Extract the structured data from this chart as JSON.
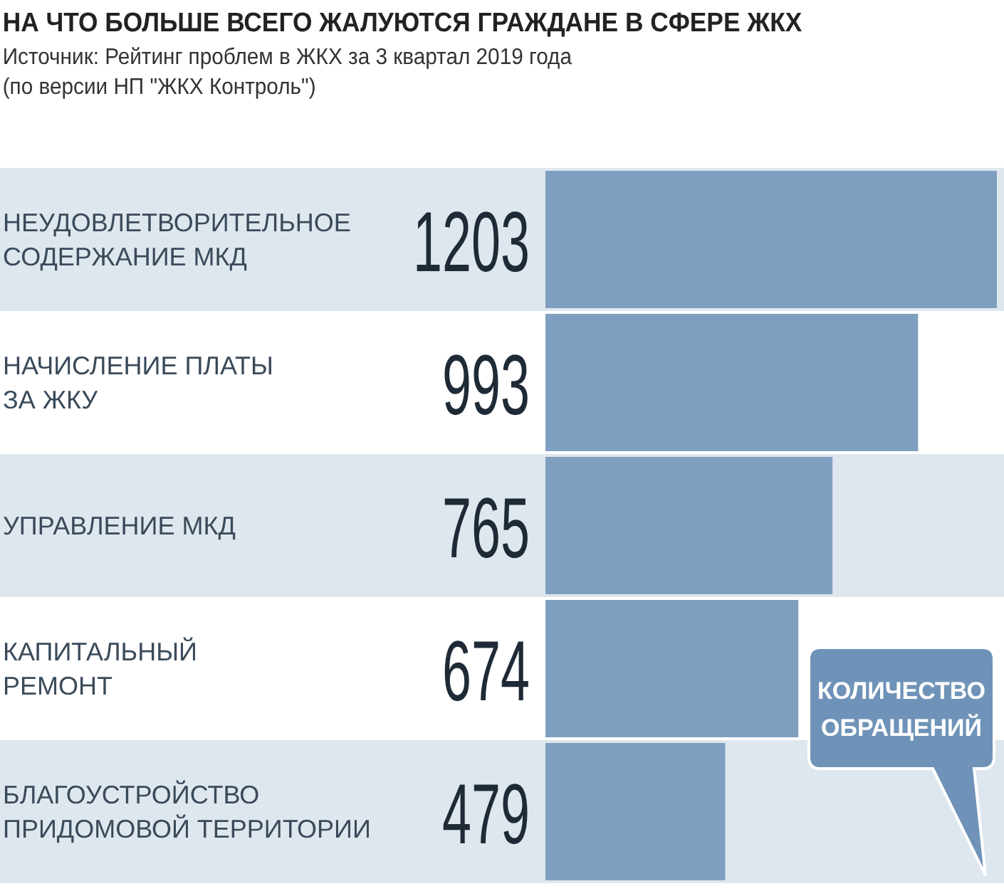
{
  "chart_data": {
    "type": "bar",
    "orientation": "horizontal",
    "title": "НА ЧТО БОЛЬШЕ ВСЕГО ЖАЛУЮТСЯ ГРАЖДАНЕ В СФЕРЕ ЖКХ",
    "subtitle": "Источник: Рейтинг проблем в ЖКХ за 3 квартал 2019 года\n(по версии НП \"ЖКХ Контроль\")",
    "xlabel": "КОЛИЧЕСТВО\nОБРАЩЕНИЙ",
    "categories": [
      "НЕУДОВЛЕТВОРИТЕЛЬНОЕ\nСОДЕРЖАНИЕ МКД",
      "НАЧИСЛЕНИЕ ПЛАТЫ\nЗА ЖКУ",
      "УПРАВЛЕНИЕ МКД",
      "КАПИТАЛЬНЫЙ\nРЕМОНТ",
      "БЛАГОУСТРОЙСТВО\nПРИДОМОВОЙ ТЕРРИТОРИИ"
    ],
    "values": [
      1203,
      993,
      765,
      674,
      479
    ],
    "color": "#7f9fc0",
    "data_labels": true,
    "bands": [
      {
        "axis": "y",
        "from": "НЕУДОВЛЕТВОРИТЕЛЬНОЕ\nСОДЕРЖАНИЕ МКД",
        "to": "НЕУДОВЛЕТВОРИТЕЛЬНОЕ\nСОДЕРЖАНИЕ МКД",
        "color": "#dfe7ee"
      },
      {
        "axis": "y",
        "from": "УПРАВЛЕНИЕ МКД",
        "to": "УПРАВЛЕНИЕ МКД",
        "color": "#dfe7ee"
      },
      {
        "axis": "y",
        "from": "БЛАГОУСТРОЙСТВО\nПРИДОМОВОЙ ТЕРРИТОРИИ",
        "to": "БЛАГОУСТРОЙСТВО\nПРИДОМОВОЙ ТЕРРИТОРИИ",
        "color": "#dfe7ee"
      }
    ]
  }
}
